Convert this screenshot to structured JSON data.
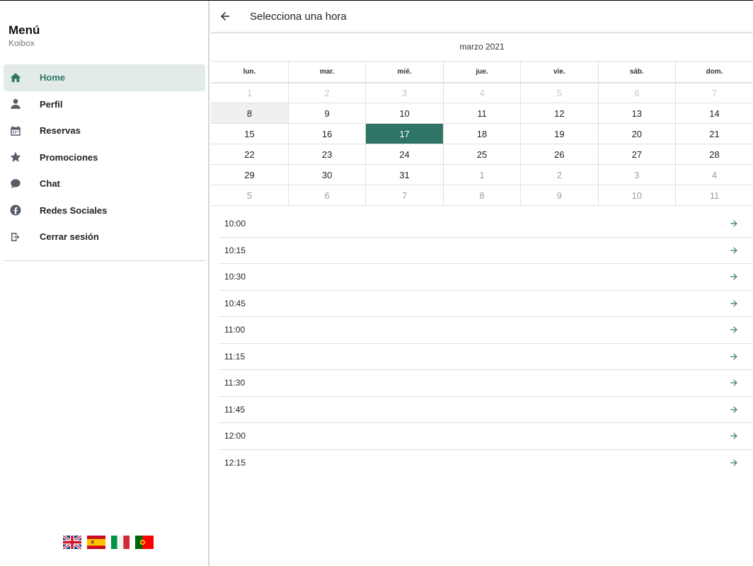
{
  "sidebar": {
    "title": "Menú",
    "subtitle": "Koibox",
    "items": [
      {
        "label": "Home",
        "icon": "home-icon",
        "active": true
      },
      {
        "label": "Perfil",
        "icon": "user-icon"
      },
      {
        "label": "Reservas",
        "icon": "calendar-icon"
      },
      {
        "label": "Promociones",
        "icon": "star-icon"
      },
      {
        "label": "Chat",
        "icon": "chat-icon"
      },
      {
        "label": "Redes Sociales",
        "icon": "facebook-icon"
      },
      {
        "label": "Cerrar sesión",
        "icon": "logout-icon"
      }
    ],
    "flags": [
      "uk-flag-icon",
      "spain-flag-icon",
      "italy-flag-icon",
      "portugal-flag-icon"
    ]
  },
  "header": {
    "title": "Selecciona una hora"
  },
  "calendar": {
    "month_label": "marzo 2021",
    "weekdays": [
      "lun.",
      "mar.",
      "mié.",
      "jue.",
      "vie.",
      "sáb.",
      "dom."
    ],
    "weeks": [
      [
        "1",
        "2",
        "3",
        "4",
        "5",
        "6",
        "7"
      ],
      [
        "8",
        "9",
        "10",
        "11",
        "12",
        "13",
        "14"
      ],
      [
        "15",
        "16",
        "17",
        "18",
        "19",
        "20",
        "21"
      ],
      [
        "22",
        "23",
        "24",
        "25",
        "26",
        "27",
        "28"
      ],
      [
        "29",
        "30",
        "31",
        "1",
        "2",
        "3",
        "4"
      ],
      [
        "5",
        "6",
        "7",
        "8",
        "9",
        "10",
        "11"
      ]
    ],
    "selected_day": "17",
    "today_day": "8"
  },
  "slots": [
    "10:00",
    "10:15",
    "10:30",
    "10:45",
    "11:00",
    "11:15",
    "11:30",
    "11:45",
    "12:00",
    "12:15"
  ],
  "colors": {
    "accent": "#2f7566",
    "active_bg": "#e2ebe8",
    "today_bg": "#efefef"
  }
}
